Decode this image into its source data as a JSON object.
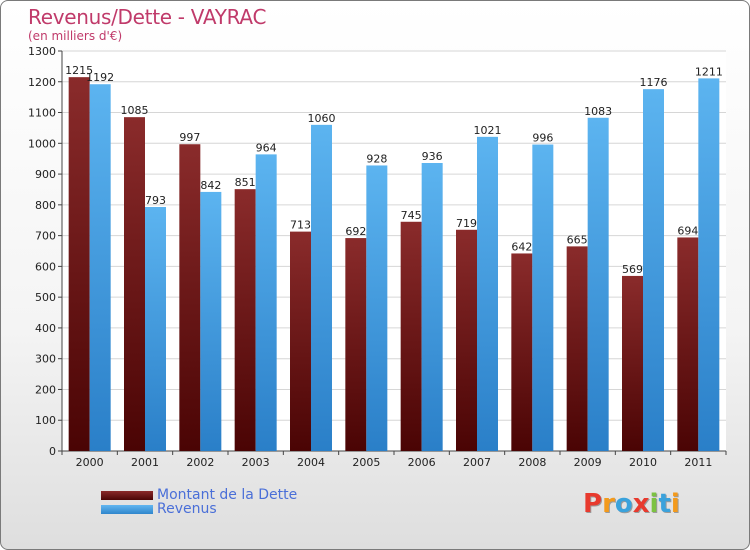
{
  "title": "Revenus/Dette - VAYRAC",
  "subtitle": "(en milliers d'€)",
  "logo": {
    "text": "Proxiti",
    "letters": [
      "P",
      "r",
      "o",
      "x",
      "i",
      "t",
      "i"
    ],
    "colors": [
      "#e83a2e",
      "#f39a1c",
      "#3aa2dc",
      "#e83a2e",
      "#7cc242",
      "#3aa2dc",
      "#f39a1c"
    ]
  },
  "legend": [
    {
      "label": "Montant de la Dette",
      "color": "#6e1a1a"
    },
    {
      "label": "Revenus",
      "color": "#4aa6e8"
    }
  ],
  "chart_data": {
    "type": "bar",
    "title": "Revenus/Dette - VAYRAC",
    "subtitle": "(en milliers d'€)",
    "xlabel": "",
    "ylabel": "",
    "categories": [
      "2000",
      "2001",
      "2002",
      "2003",
      "2004",
      "2005",
      "2006",
      "2007",
      "2008",
      "2009",
      "2010",
      "2011"
    ],
    "series": [
      {
        "name": "Montant de la Dette",
        "color": "#7a2424",
        "values": [
          1215,
          1085,
          997,
          851,
          713,
          692,
          745,
          719,
          642,
          665,
          569,
          694
        ]
      },
      {
        "name": "Revenus",
        "color": "#4aa6e8",
        "values": [
          1192,
          793,
          842,
          964,
          1060,
          928,
          936,
          1021,
          996,
          1083,
          1176,
          1211
        ]
      }
    ],
    "ylim": [
      0,
      1300
    ],
    "yticks": [
      0,
      100,
      200,
      300,
      400,
      500,
      600,
      700,
      800,
      900,
      1000,
      1100,
      1200,
      1300
    ],
    "grid": true,
    "legend_position": "bottom-left"
  }
}
